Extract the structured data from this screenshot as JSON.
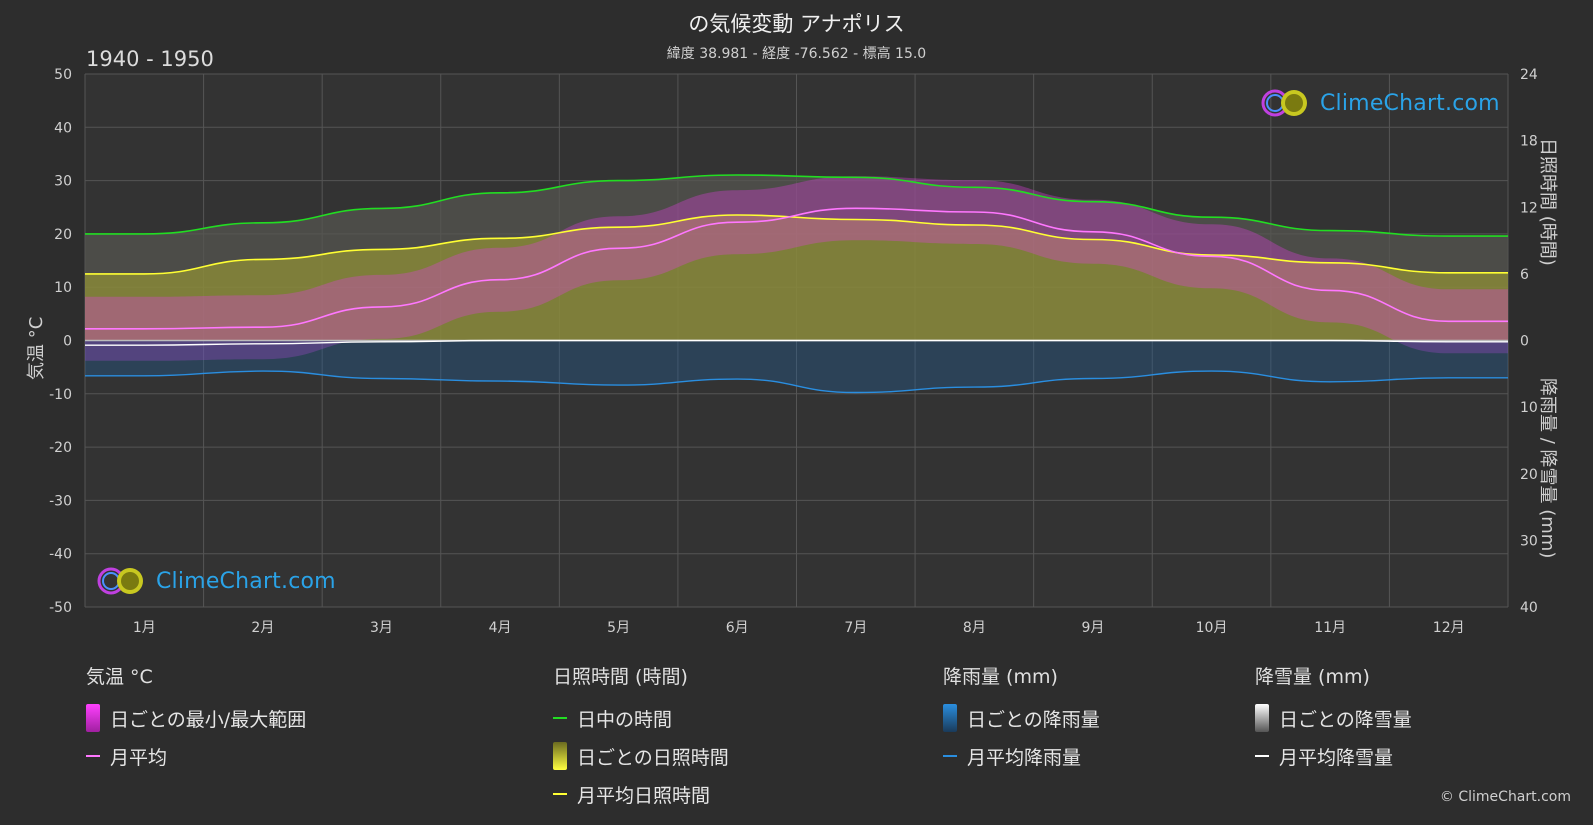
{
  "header": {
    "title": "の気候変動 アナポリス",
    "subtitle": "緯度 38.981 - 経度 -76.562 - 標高 15.0",
    "period": "1940 - 1950"
  },
  "branding": {
    "logo_text": "ClimeChart.com",
    "copyright": "© ClimeChart.com"
  },
  "colors": {
    "background": "#2d2d2d",
    "grid": "#555555",
    "daylight": "#22dd22",
    "sunshine_fill": "#a8a830",
    "sunshine_line": "#ffff33",
    "temp_range": "#e040e0",
    "temp_line": "#ff77ff",
    "rain_fill": "#1f5f9a",
    "rain_line": "#2a8ee0",
    "snow_line": "#ffffff",
    "logo_text": "#2aa3e8"
  },
  "chart_data": {
    "type": "area",
    "x_categories": [
      "1月",
      "2月",
      "3月",
      "4月",
      "5月",
      "6月",
      "7月",
      "8月",
      "9月",
      "10月",
      "11月",
      "12月"
    ],
    "y_left": {
      "label": "気温 °C",
      "range": [
        -50,
        50
      ],
      "ticks": [
        50,
        40,
        30,
        20,
        10,
        0,
        -10,
        -20,
        -30,
        -40,
        -50
      ]
    },
    "y_right_top": {
      "label": "日照時間 (時間)",
      "range": [
        0,
        24
      ],
      "ticks": [
        24,
        18,
        12,
        6,
        0
      ]
    },
    "y_right_bottom": {
      "label": "降雨量 / 降雪量 (mm)",
      "range": [
        0,
        40
      ],
      "ticks": [
        10,
        20,
        30,
        40
      ]
    },
    "series": [
      {
        "name": "日中の時間",
        "unit": "h",
        "values": [
          9.6,
          10.6,
          11.9,
          13.3,
          14.4,
          14.9,
          14.7,
          13.8,
          12.5,
          11.1,
          9.9,
          9.4
        ]
      },
      {
        "name": "月平均日照時間",
        "unit": "h",
        "values": [
          6.0,
          7.3,
          8.2,
          9.2,
          10.2,
          11.3,
          10.9,
          10.4,
          9.1,
          7.7,
          7.0,
          6.1
        ]
      },
      {
        "name": "月平均",
        "unit": "°C",
        "values": [
          2.2,
          2.5,
          6.3,
          11.4,
          17.3,
          22.2,
          24.8,
          24.1,
          20.4,
          15.8,
          9.4,
          3.6
        ]
      },
      {
        "name": "月平均降雨量",
        "unit": "mm",
        "values": [
          5.3,
          4.6,
          5.7,
          6.1,
          6.7,
          5.8,
          7.8,
          7.0,
          5.7,
          4.6,
          6.2,
          5.6
        ]
      },
      {
        "name": "月平均降雪量",
        "unit": "mm",
        "values": [
          0.7,
          0.5,
          0.2,
          0.0,
          0.0,
          0.0,
          0.0,
          0.0,
          0.0,
          0.0,
          0.0,
          0.2
        ]
      }
    ],
    "grid": true,
    "legend_position": "bottom"
  },
  "legend": {
    "temperature": {
      "heading": "気温 °C",
      "items": [
        "日ごとの最小/最大範囲",
        "月平均"
      ]
    },
    "sunshine": {
      "heading": "日照時間 (時間)",
      "items": [
        "日中の時間",
        "日ごとの日照時間",
        "月平均日照時間"
      ]
    },
    "rain": {
      "heading": "降雨量 (mm)",
      "items": [
        "日ごとの降雨量",
        "月平均降雨量"
      ]
    },
    "snow": {
      "heading": "降雪量 (mm)",
      "items": [
        "日ごとの降雪量",
        "月平均降雪量"
      ]
    }
  }
}
